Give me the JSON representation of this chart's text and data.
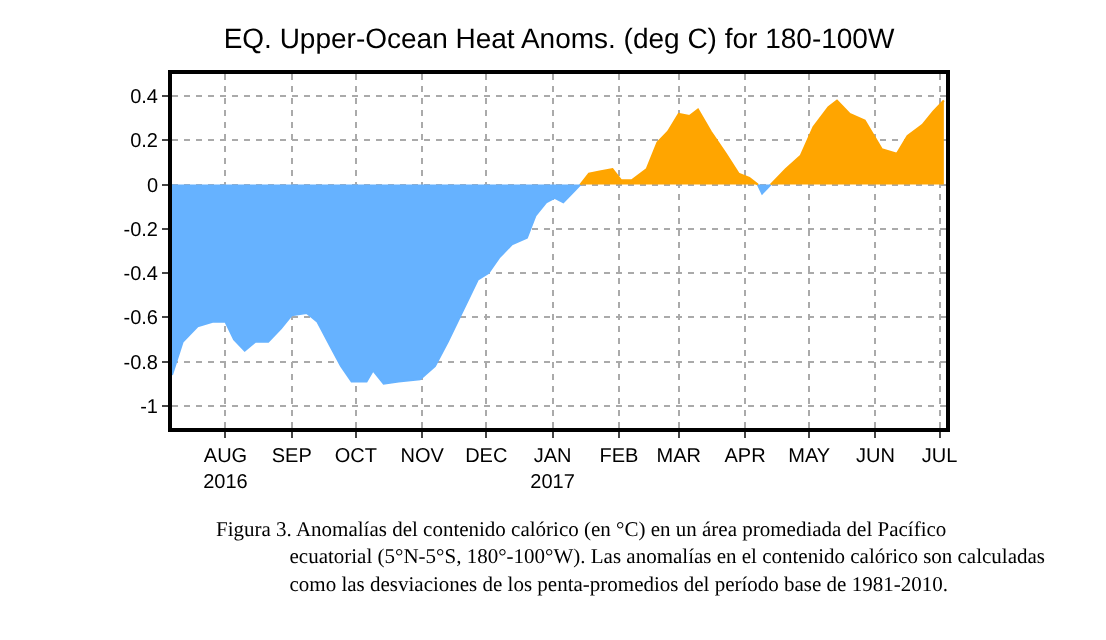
{
  "chart_data": {
    "type": "area",
    "title": "EQ. Upper-Ocean Heat Anoms. (deg C) for 180-100W",
    "x": [
      "2016-07-07",
      "2016-07-12",
      "2016-07-19",
      "2016-07-26",
      "2016-08-01",
      "2016-08-05",
      "2016-08-10",
      "2016-08-15",
      "2016-08-21",
      "2016-08-27",
      "2016-09-01",
      "2016-09-08",
      "2016-09-13",
      "2016-09-19",
      "2016-09-24",
      "2016-09-29",
      "2016-10-06",
      "2016-10-09",
      "2016-10-14",
      "2016-10-21",
      "2016-10-31",
      "2016-11-07",
      "2016-11-13",
      "2016-11-20",
      "2016-11-27",
      "2016-12-02",
      "2016-12-07",
      "2016-12-13",
      "2016-12-20",
      "2016-12-24",
      "2016-12-29",
      "2017-01-02",
      "2017-01-06",
      "2017-01-11",
      "2017-01-14",
      "2017-01-18",
      "2017-01-23",
      "2017-01-29",
      "2017-02-02",
      "2017-02-07",
      "2017-02-14",
      "2017-02-19",
      "2017-02-24",
      "2017-03-01",
      "2017-03-06",
      "2017-03-10",
      "2017-03-16",
      "2017-03-23",
      "2017-03-29",
      "2017-04-03",
      "2017-04-07",
      "2017-04-08",
      "2017-04-09",
      "2017-04-11",
      "2017-04-13",
      "2017-04-20",
      "2017-04-27",
      "2017-05-03",
      "2017-05-10",
      "2017-05-14",
      "2017-05-20",
      "2017-05-27",
      "2017-06-04",
      "2017-06-11",
      "2017-06-16",
      "2017-06-23",
      "2017-06-28",
      "2017-07-03"
    ],
    "series": [
      {
        "color": "#66b2ff",
        "values": [
          -0.86,
          -0.71,
          -0.64,
          -0.62,
          -0.62,
          -0.7,
          -0.75,
          -0.71,
          -0.71,
          -0.65,
          -0.59,
          -0.58,
          -0.62,
          -0.73,
          -0.82,
          -0.89,
          -0.89,
          -0.84,
          -0.9,
          -0.89,
          -0.88,
          -0.82,
          -0.71,
          -0.57,
          -0.43,
          -0.4,
          -0.33,
          -0.27,
          -0.24,
          -0.14,
          -0.08,
          -0.06,
          -0.08,
          -0.03,
          0,
          null,
          null,
          null,
          null,
          null,
          null,
          null,
          null,
          null,
          null,
          null,
          null,
          null,
          null,
          null,
          0,
          -0.02,
          -0.04,
          -0.02,
          0,
          null,
          null,
          null,
          null,
          null,
          null,
          null,
          null,
          null,
          null,
          null,
          null,
          null
        ]
      },
      {
        "color": "#ffa500",
        "values": [
          null,
          null,
          null,
          null,
          null,
          null,
          null,
          null,
          null,
          null,
          null,
          null,
          null,
          null,
          null,
          null,
          null,
          null,
          null,
          null,
          null,
          null,
          null,
          null,
          null,
          null,
          null,
          null,
          null,
          null,
          null,
          null,
          null,
          null,
          0,
          0.05,
          0.06,
          0.07,
          0.02,
          0.02,
          0.07,
          0.19,
          0.24,
          0.32,
          0.31,
          0.34,
          0.24,
          0.14,
          0.05,
          0.03,
          0,
          null,
          null,
          null,
          0,
          0.07,
          0.13,
          0.26,
          0.35,
          0.38,
          0.32,
          0.29,
          0.16,
          0.14,
          0.22,
          0.27,
          0.33,
          0.38
        ]
      }
    ],
    "xlim": [
      "2016-07-07",
      "2017-07-04"
    ],
    "xticks": [
      {
        "value": "2016-08-01",
        "label": "AUG\n2016"
      },
      {
        "value": "2016-09-01",
        "label": "SEP"
      },
      {
        "value": "2016-10-01",
        "label": "OCT"
      },
      {
        "value": "2016-11-01",
        "label": "NOV"
      },
      {
        "value": "2016-12-01",
        "label": "DEC"
      },
      {
        "value": "2017-01-01",
        "label": "JAN\n2017"
      },
      {
        "value": "2017-02-01",
        "label": "FEB"
      },
      {
        "value": "2017-03-01",
        "label": "MAR"
      },
      {
        "value": "2017-04-01",
        "label": "APR"
      },
      {
        "value": "2017-05-01",
        "label": "MAY"
      },
      {
        "value": "2017-06-01",
        "label": "JUN"
      },
      {
        "value": "2017-07-01",
        "label": "JUL"
      }
    ],
    "ylim": [
      -1.1,
      0.5
    ],
    "yticks": [
      0.4,
      0.2,
      0,
      -0.2,
      -0.4,
      -0.6,
      -0.8,
      -1
    ],
    "grid": true,
    "annotations": [
      "Figura 3. Anomalías del contenido calórico (en °C) en un área promediada del Pacífico\necuatorial (5°N-5°S, 180°-100°W). Las anomalías en el contenido calórico son calculadas\ncomo las desviaciones de los penta-promedios del período base de 1981-2010."
    ]
  }
}
